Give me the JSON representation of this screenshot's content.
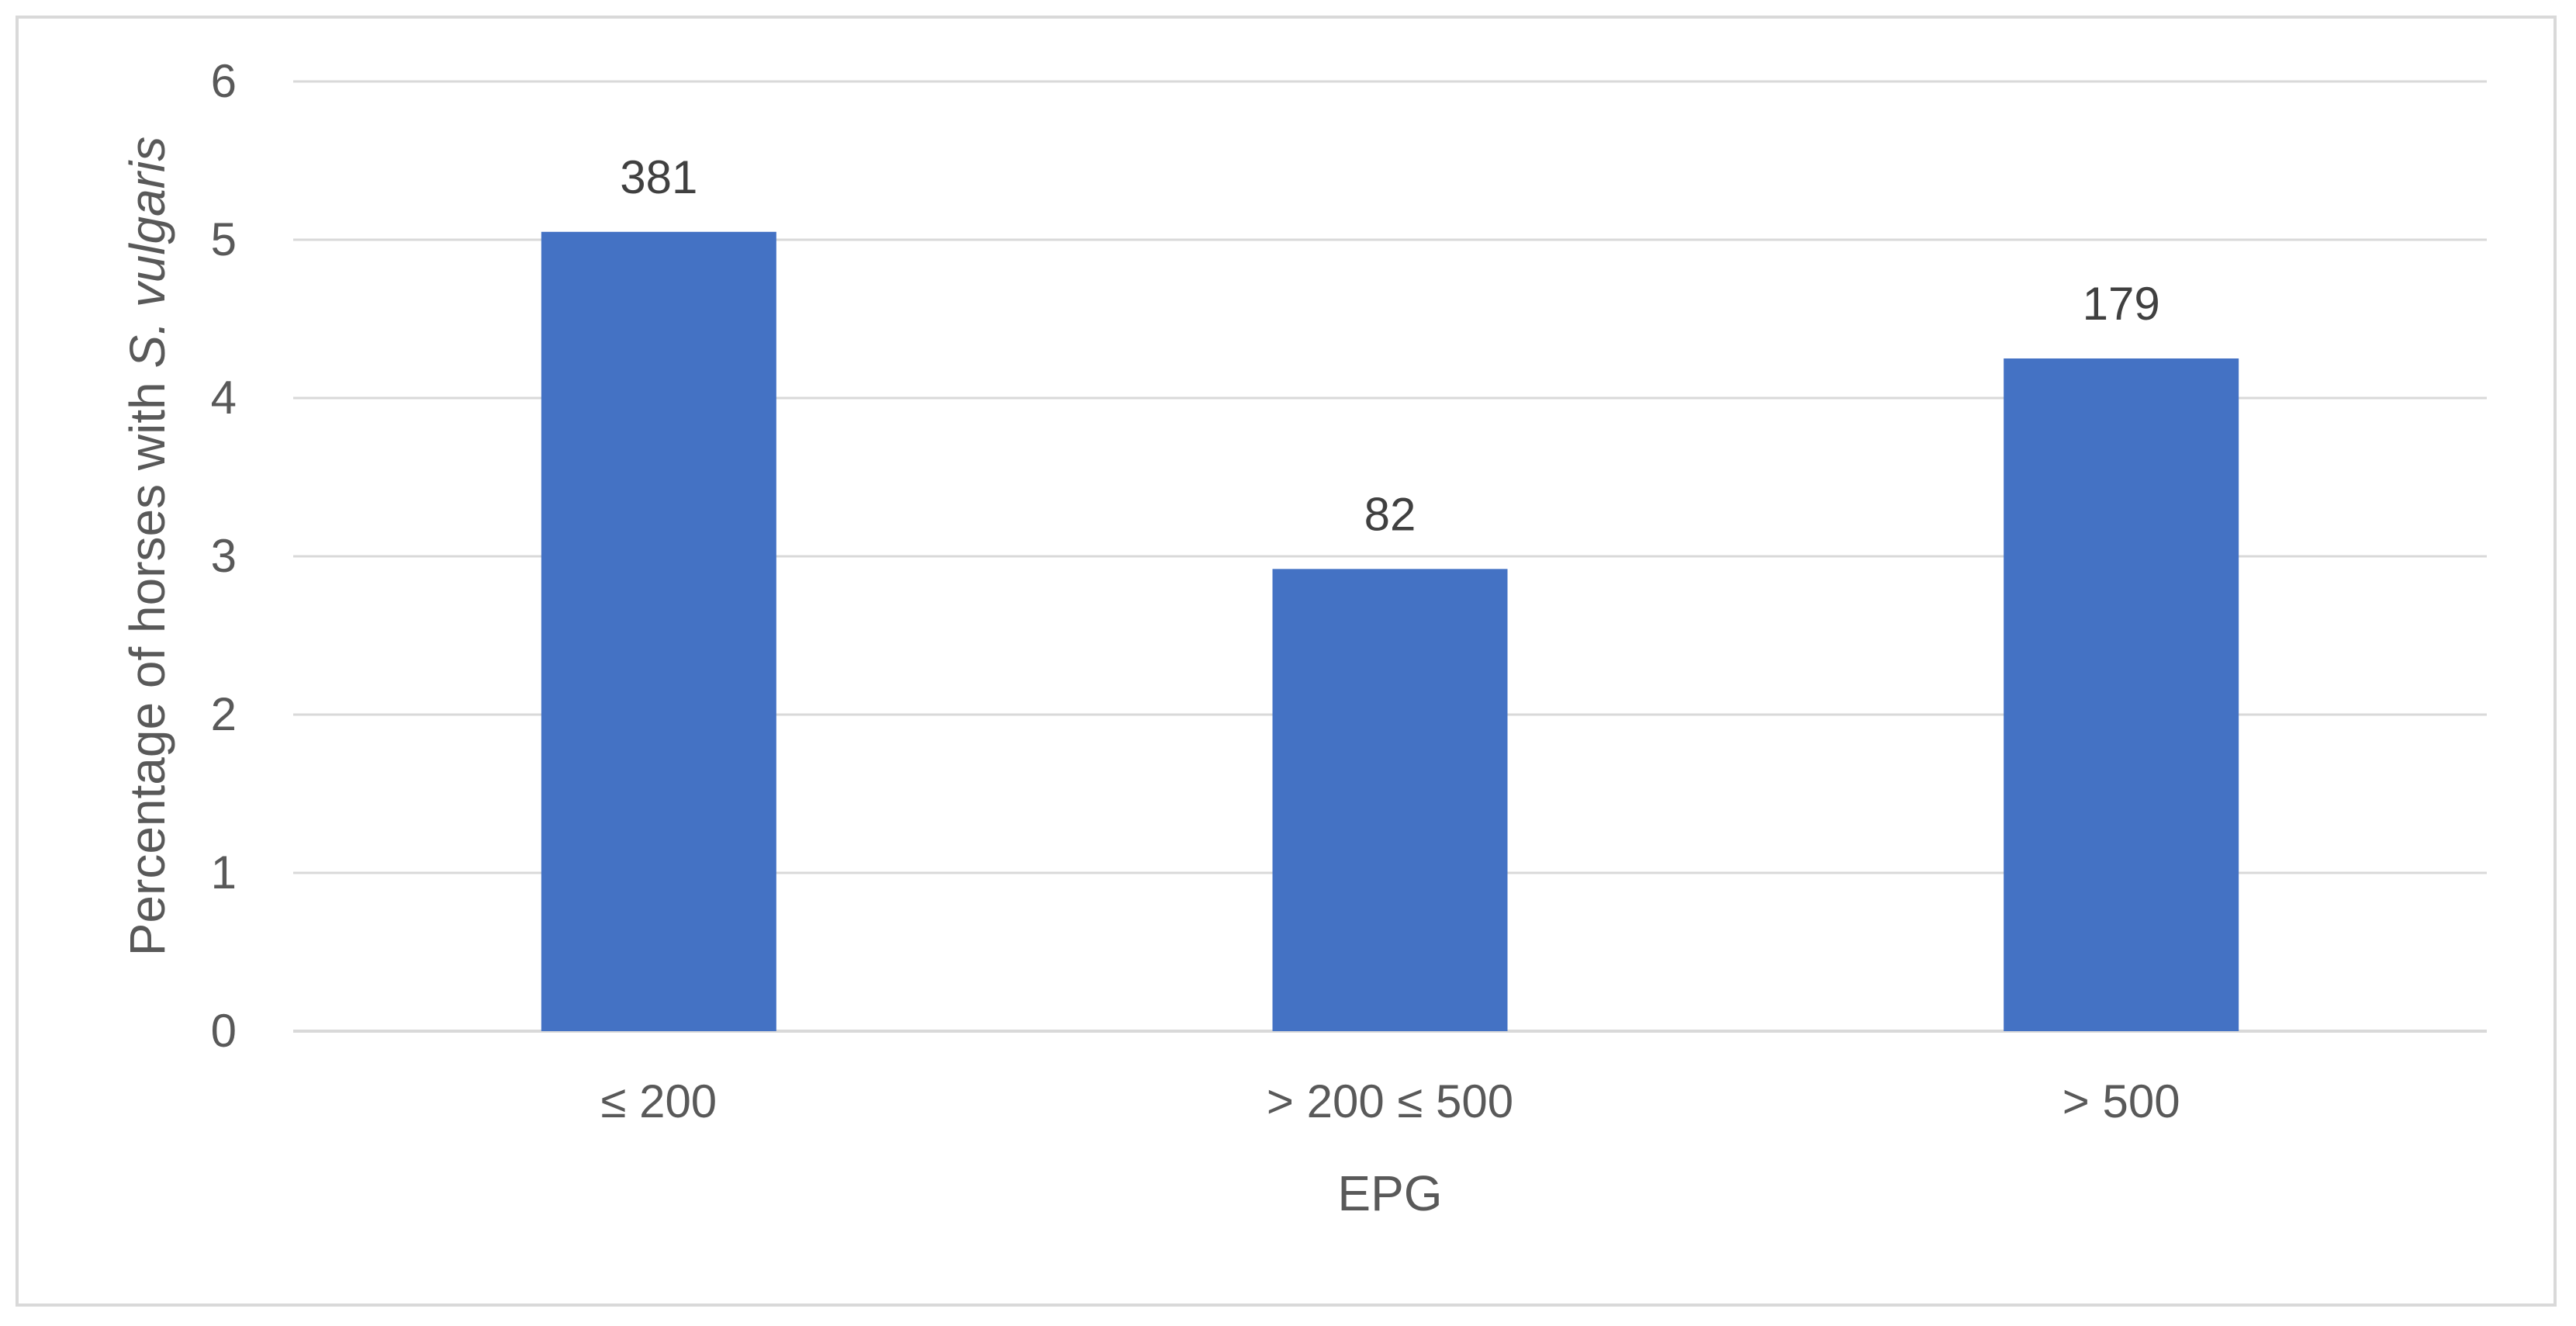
{
  "chart_data": {
    "type": "bar",
    "categories": [
      "≤ 200",
      "> 200 ≤ 500",
      "> 500"
    ],
    "values": [
      5.05,
      2.92,
      4.25
    ],
    "data_labels": [
      "381",
      "82",
      "179"
    ],
    "xlabel": "EPG",
    "ylabel": {
      "plain": "Percentage of horses with ",
      "italic": "S. vulgaris"
    },
    "ylim": [
      0,
      6
    ],
    "yticks": [
      "0",
      "1",
      "2",
      "3",
      "4",
      "5",
      "6"
    ],
    "grid": true,
    "legend": "none",
    "bar_color": "#4472c4",
    "grid_color": "#d9d9d9"
  }
}
